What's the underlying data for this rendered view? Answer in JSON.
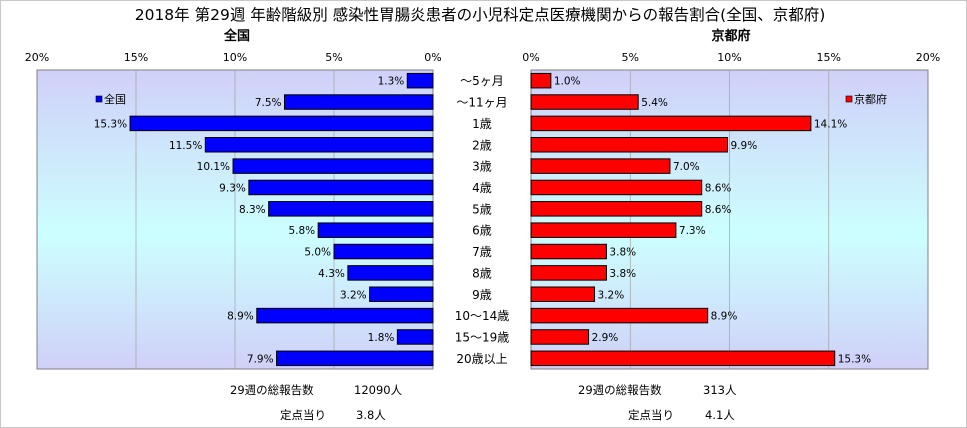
{
  "chart_data": {
    "type": "bar",
    "orientation": "horizontal",
    "layout": "butterfly",
    "title": "2018年 第29週 年齢階級別 感染性胃腸炎患者の小児科定点医療機関からの報告割合(全国、京都府)",
    "categories": [
      "～5ヶ月",
      "～11ヶ月",
      "1歳",
      "2歳",
      "3歳",
      "4歳",
      "5歳",
      "6歳",
      "7歳",
      "8歳",
      "9歳",
      "10～14歳",
      "15～19歳",
      "20歳以上"
    ],
    "xlim": [
      0,
      20
    ],
    "ticks": [
      "20%",
      "15%",
      "10%",
      "5%",
      "0%",
      "0%",
      "5%",
      "10%",
      "15%",
      "20%"
    ],
    "tick_values": [
      20,
      15,
      10,
      5,
      0
    ],
    "grid": true,
    "series": [
      {
        "name": "全国",
        "panel_title": "全国",
        "legend": "全国",
        "legend_position": "top-left",
        "color": "#0000ff",
        "values": [
          1.3,
          7.5,
          15.3,
          11.5,
          10.1,
          9.3,
          8.3,
          5.8,
          5.0,
          4.3,
          3.2,
          8.9,
          1.8,
          7.9
        ],
        "labels": [
          "1.3%",
          "7.5%",
          "15.3%",
          "11.5%",
          "10.1%",
          "9.3%",
          "8.3%",
          "5.8%",
          "5.0%",
          "4.3%",
          "3.2%",
          "8.9%",
          "1.8%",
          "7.9%"
        ],
        "summary": {
          "total_label": "29週の総報告数",
          "total_value": "12090人",
          "per_label": "定点当り",
          "per_value": "3.8人"
        }
      },
      {
        "name": "京都府",
        "panel_title": "京都府",
        "legend": "京都府",
        "legend_position": "top-right",
        "color": "#ff0000",
        "values": [
          1.0,
          5.4,
          14.1,
          9.9,
          7.0,
          8.6,
          8.6,
          7.3,
          3.8,
          3.8,
          3.2,
          8.9,
          2.9,
          15.3
        ],
        "labels": [
          "1.0%",
          "5.4%",
          "14.1%",
          "9.9%",
          "7.0%",
          "8.6%",
          "8.6%",
          "7.3%",
          "3.8%",
          "3.8%",
          "3.2%",
          "8.9%",
          "2.9%",
          "15.3%"
        ],
        "summary": {
          "total_label": "29週の総報告数",
          "total_value": "313人",
          "per_label": "定点当り",
          "per_value": "4.1人"
        }
      }
    ],
    "background_gradient": [
      "#d0d0f8",
      "#ccffff"
    ]
  }
}
